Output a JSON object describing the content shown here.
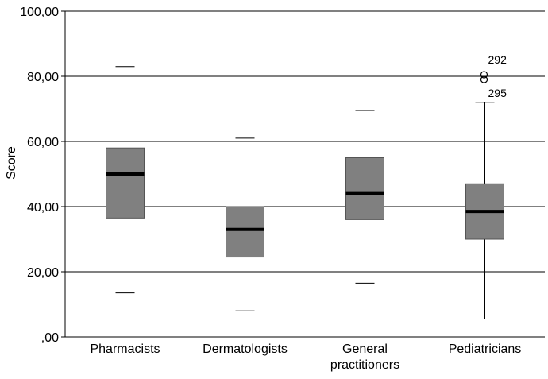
{
  "chart_data": {
    "type": "boxplot",
    "ylabel": "Score",
    "ylim": [
      0,
      100
    ],
    "yticks": [
      0,
      20,
      40,
      60,
      80,
      100
    ],
    "ytick_labels": [
      ",00",
      "20,00",
      "40,00",
      "60,00",
      "80,00",
      "100,00"
    ],
    "grid": "horizontal",
    "box_color": "#808080",
    "median_color": "#000000",
    "categories": [
      {
        "label_lines": [
          "Pharmacists"
        ],
        "whisker_low": 13.5,
        "q1": 36.5,
        "median": 50.0,
        "q3": 58.0,
        "whisker_high": 83.0,
        "outliers": []
      },
      {
        "label_lines": [
          "Dermatologists"
        ],
        "whisker_low": 8.0,
        "q1": 24.5,
        "median": 33.0,
        "q3": 40.0,
        "whisker_high": 61.0,
        "outliers": []
      },
      {
        "label_lines": [
          "General",
          "practitioners"
        ],
        "whisker_low": 16.5,
        "q1": 36.0,
        "median": 44.0,
        "q3": 55.0,
        "whisker_high": 69.5,
        "outliers": []
      },
      {
        "label_lines": [
          "Pediatricians"
        ],
        "whisker_low": 5.5,
        "q1": 30.0,
        "median": 38.5,
        "q3": 47.0,
        "whisker_high": 72.0,
        "outliers": [
          {
            "value": 80.5,
            "label": "292",
            "label_pos": "above"
          },
          {
            "value": 79.0,
            "label": "295",
            "label_pos": "below"
          }
        ]
      }
    ]
  }
}
